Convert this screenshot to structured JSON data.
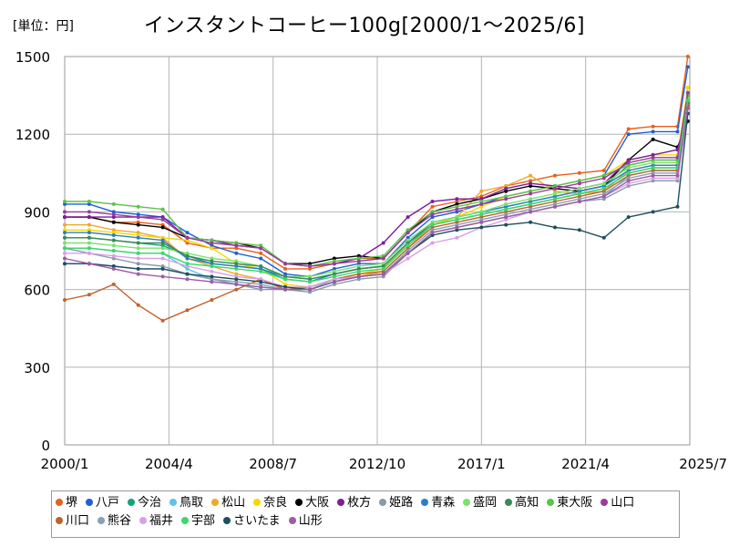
{
  "unit_label": "[単位：円]",
  "chart_data": {
    "type": "line",
    "title": "インスタントコーヒー100g[2000/1～2025/6]",
    "xlabel": "",
    "ylabel": "",
    "ylim": [
      0,
      1500
    ],
    "xlim": [
      "2000/1",
      "2025/7"
    ],
    "y_ticks": [
      0,
      300,
      600,
      900,
      1200,
      1500
    ],
    "x_ticks": [
      "2000/1",
      "2004/4",
      "2008/7",
      "2012/10",
      "2017/1",
      "2021/4",
      "2025/7"
    ],
    "grid": true,
    "legend_position": "bottom",
    "x": [
      "2000/1",
      "2001/1",
      "2002/1",
      "2003/1",
      "2004/1",
      "2005/1",
      "2006/1",
      "2007/1",
      "2008/1",
      "2009/1",
      "2010/1",
      "2011/1",
      "2012/1",
      "2013/1",
      "2014/1",
      "2015/1",
      "2016/1",
      "2017/1",
      "2018/1",
      "2019/1",
      "2020/1",
      "2021/1",
      "2022/1",
      "2023/1",
      "2024/1",
      "2025/1",
      "2025/6"
    ],
    "series": [
      {
        "name": "堺",
        "color": "#e8601c",
        "values": [
          880,
          880,
          860,
          860,
          850,
          780,
          760,
          760,
          740,
          680,
          680,
          700,
          720,
          720,
          820,
          920,
          940,
          960,
          1000,
          1020,
          1040,
          1050,
          1060,
          1220,
          1230,
          1230,
          1500
        ]
      },
      {
        "name": "八戸",
        "color": "#1f5fd6",
        "values": [
          930,
          930,
          900,
          890,
          880,
          820,
          770,
          740,
          720,
          660,
          650,
          680,
          700,
          700,
          800,
          880,
          900,
          930,
          960,
          980,
          1000,
          1020,
          1040,
          1200,
          1210,
          1210,
          1460
        ]
      },
      {
        "name": "今治",
        "color": "#16a37a",
        "values": [
          800,
          800,
          790,
          780,
          770,
          730,
          700,
          690,
          680,
          650,
          640,
          660,
          680,
          690,
          780,
          860,
          880,
          900,
          920,
          940,
          960,
          980,
          1000,
          1080,
          1100,
          1100,
          1380
        ]
      },
      {
        "name": "鳥取",
        "color": "#5bc4e8",
        "values": [
          760,
          760,
          750,
          740,
          740,
          680,
          640,
          620,
          610,
          600,
          600,
          640,
          650,
          660,
          740,
          820,
          840,
          860,
          880,
          900,
          920,
          940,
          960,
          1040,
          1060,
          1060,
          1330
        ]
      },
      {
        "name": "松山",
        "color": "#f0a82a",
        "values": [
          850,
          850,
          830,
          820,
          800,
          720,
          690,
          660,
          640,
          600,
          600,
          630,
          650,
          670,
          760,
          850,
          880,
          980,
          1000,
          1040,
          980,
          970,
          980,
          1060,
          1080,
          1080,
          1360
        ]
      },
      {
        "name": "奈良",
        "color": "#f3d900",
        "values": [
          830,
          830,
          820,
          810,
          800,
          790,
          760,
          700,
          680,
          620,
          610,
          640,
          660,
          680,
          780,
          850,
          880,
          920,
          960,
          980,
          1000,
          1020,
          1040,
          1100,
          1120,
          1120,
          1380
        ]
      },
      {
        "name": "大阪",
        "color": "#000000",
        "values": [
          880,
          880,
          860,
          850,
          840,
          800,
          790,
          780,
          760,
          700,
          700,
          720,
          730,
          720,
          820,
          900,
          930,
          950,
          980,
          1000,
          990,
          980,
          1000,
          1100,
          1180,
          1150,
          1250
        ]
      },
      {
        "name": "枚方",
        "color": "#7e1e9c",
        "values": [
          880,
          880,
          880,
          880,
          880,
          800,
          790,
          770,
          760,
          700,
          690,
          700,
          720,
          780,
          880,
          940,
          950,
          950,
          990,
          1010,
          1000,
          990,
          1010,
          1100,
          1120,
          1140,
          1280
        ]
      },
      {
        "name": "姫路",
        "color": "#8a9ba8",
        "values": [
          760,
          740,
          720,
          700,
          690,
          660,
          640,
          620,
          600,
          600,
          590,
          620,
          640,
          650,
          740,
          820,
          840,
          860,
          880,
          900,
          920,
          940,
          950,
          1000,
          1020,
          1020,
          1300
        ]
      },
      {
        "name": "青森",
        "color": "#2a7fc9",
        "values": [
          820,
          820,
          810,
          800,
          790,
          720,
          700,
          690,
          680,
          640,
          630,
          660,
          680,
          690,
          780,
          860,
          880,
          900,
          920,
          940,
          960,
          980,
          1000,
          1060,
          1080,
          1080,
          1350
        ]
      },
      {
        "name": "盛岡",
        "color": "#7ce26a",
        "values": [
          780,
          780,
          770,
          760,
          760,
          740,
          720,
          710,
          690,
          650,
          650,
          670,
          690,
          700,
          790,
          860,
          880,
          900,
          930,
          950,
          970,
          990,
          1010,
          1070,
          1090,
          1090,
          1340
        ]
      },
      {
        "name": "高知",
        "color": "#3a8a5a",
        "values": [
          800,
          800,
          790,
          780,
          780,
          730,
          710,
          700,
          690,
          650,
          640,
          660,
          680,
          690,
          780,
          850,
          870,
          890,
          910,
          930,
          950,
          970,
          990,
          1050,
          1070,
          1070,
          1320
        ]
      },
      {
        "name": "東大阪",
        "color": "#5bc44a",
        "values": [
          940,
          940,
          930,
          920,
          910,
          800,
          790,
          780,
          770,
          700,
          690,
          710,
          720,
          730,
          830,
          900,
          920,
          940,
          960,
          980,
          1000,
          1020,
          1040,
          1080,
          1100,
          1100,
          1350
        ]
      },
      {
        "name": "山口",
        "color": "#9c3b9c",
        "values": [
          900,
          900,
          890,
          880,
          870,
          800,
          780,
          770,
          760,
          700,
          690,
          700,
          710,
          720,
          820,
          890,
          910,
          930,
          950,
          970,
          990,
          1010,
          1030,
          1090,
          1110,
          1110,
          1360
        ]
      },
      {
        "name": "川口",
        "color": "#c0622b",
        "values": [
          560,
          580,
          620,
          540,
          480,
          520,
          560,
          600,
          640,
          600,
          610,
          640,
          660,
          670,
          760,
          840,
          860,
          880,
          900,
          920,
          940,
          960,
          980,
          1040,
          1060,
          1060,
          1310
        ]
      },
      {
        "name": "熊谷",
        "color": "#8aa0b4",
        "values": [
          700,
          700,
          690,
          680,
          680,
          660,
          640,
          630,
          620,
          600,
          600,
          630,
          650,
          660,
          750,
          830,
          850,
          870,
          890,
          910,
          930,
          950,
          970,
          1030,
          1050,
          1050,
          1300
        ]
      },
      {
        "name": "福井",
        "color": "#d9a0e6",
        "values": [
          740,
          740,
          730,
          720,
          720,
          690,
          670,
          650,
          640,
          610,
          610,
          640,
          650,
          660,
          720,
          780,
          800,
          840,
          870,
          900,
          920,
          940,
          960,
          1010,
          1030,
          1030,
          1280
        ]
      },
      {
        "name": "宇部",
        "color": "#3ed66a",
        "values": [
          760,
          760,
          750,
          740,
          740,
          700,
          690,
          680,
          670,
          640,
          630,
          650,
          670,
          680,
          770,
          850,
          870,
          890,
          910,
          930,
          950,
          970,
          990,
          1050,
          1070,
          1070,
          1330
        ]
      },
      {
        "name": "さいたま",
        "color": "#1e4f5f",
        "values": [
          700,
          700,
          690,
          680,
          680,
          660,
          650,
          640,
          630,
          610,
          600,
          630,
          650,
          660,
          740,
          810,
          830,
          840,
          850,
          860,
          840,
          830,
          800,
          880,
          900,
          920,
          1280
        ]
      },
      {
        "name": "山形",
        "color": "#a05aa8",
        "values": [
          720,
          700,
          680,
          660,
          650,
          640,
          630,
          620,
          610,
          600,
          600,
          630,
          650,
          660,
          740,
          820,
          840,
          860,
          880,
          900,
          920,
          940,
          960,
          1020,
          1040,
          1040,
          1300
        ]
      }
    ]
  }
}
